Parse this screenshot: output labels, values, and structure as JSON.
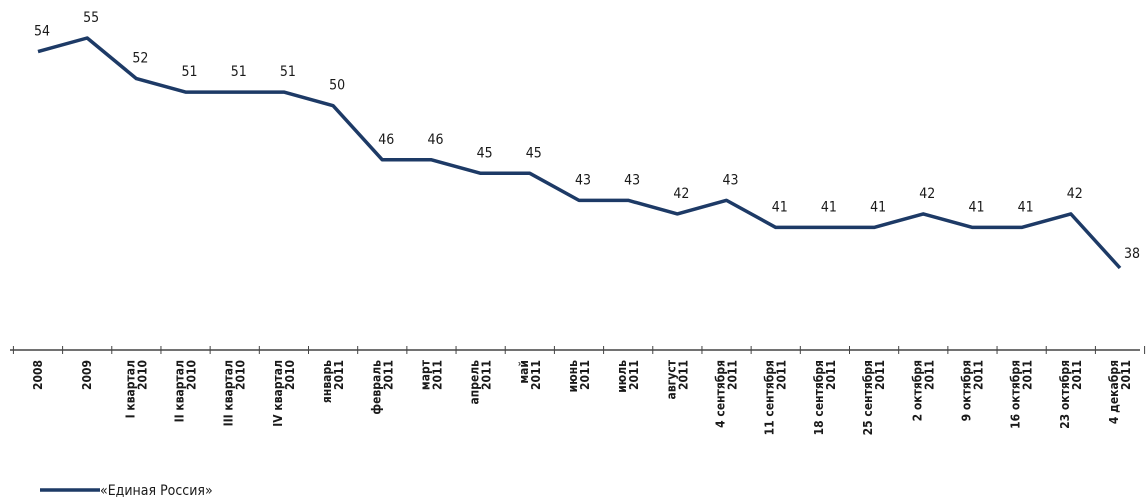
{
  "chart_data": {
    "type": "line",
    "categories": [
      "2008",
      "2009",
      "I квартал\n2010",
      "II квартал\n2010",
      "III квартал\n2010",
      "IV квартал\n2010",
      "январь\n2011",
      "февраль\n2011",
      "март\n2011",
      "апрель\n2011",
      "май\n2011",
      "июнь\n2011",
      "июль\n2011",
      "август\n2011",
      "4 сентября\n2011",
      "11 сентября\n2011",
      "18 сентября\n2011",
      "25 сентября\n2011",
      "2 октября\n2011",
      "9 октября\n2011",
      "16 октября\n2011",
      "23 октября\n2011",
      "4 декабря\n2011"
    ],
    "series": [
      {
        "name": "«Единая Россия»",
        "color": "#1d3a66",
        "values": [
          54,
          55,
          52,
          51,
          51,
          51,
          50,
          46,
          46,
          45,
          45,
          43,
          43,
          42,
          43,
          41,
          41,
          41,
          42,
          41,
          41,
          42,
          38
        ]
      }
    ]
  }
}
